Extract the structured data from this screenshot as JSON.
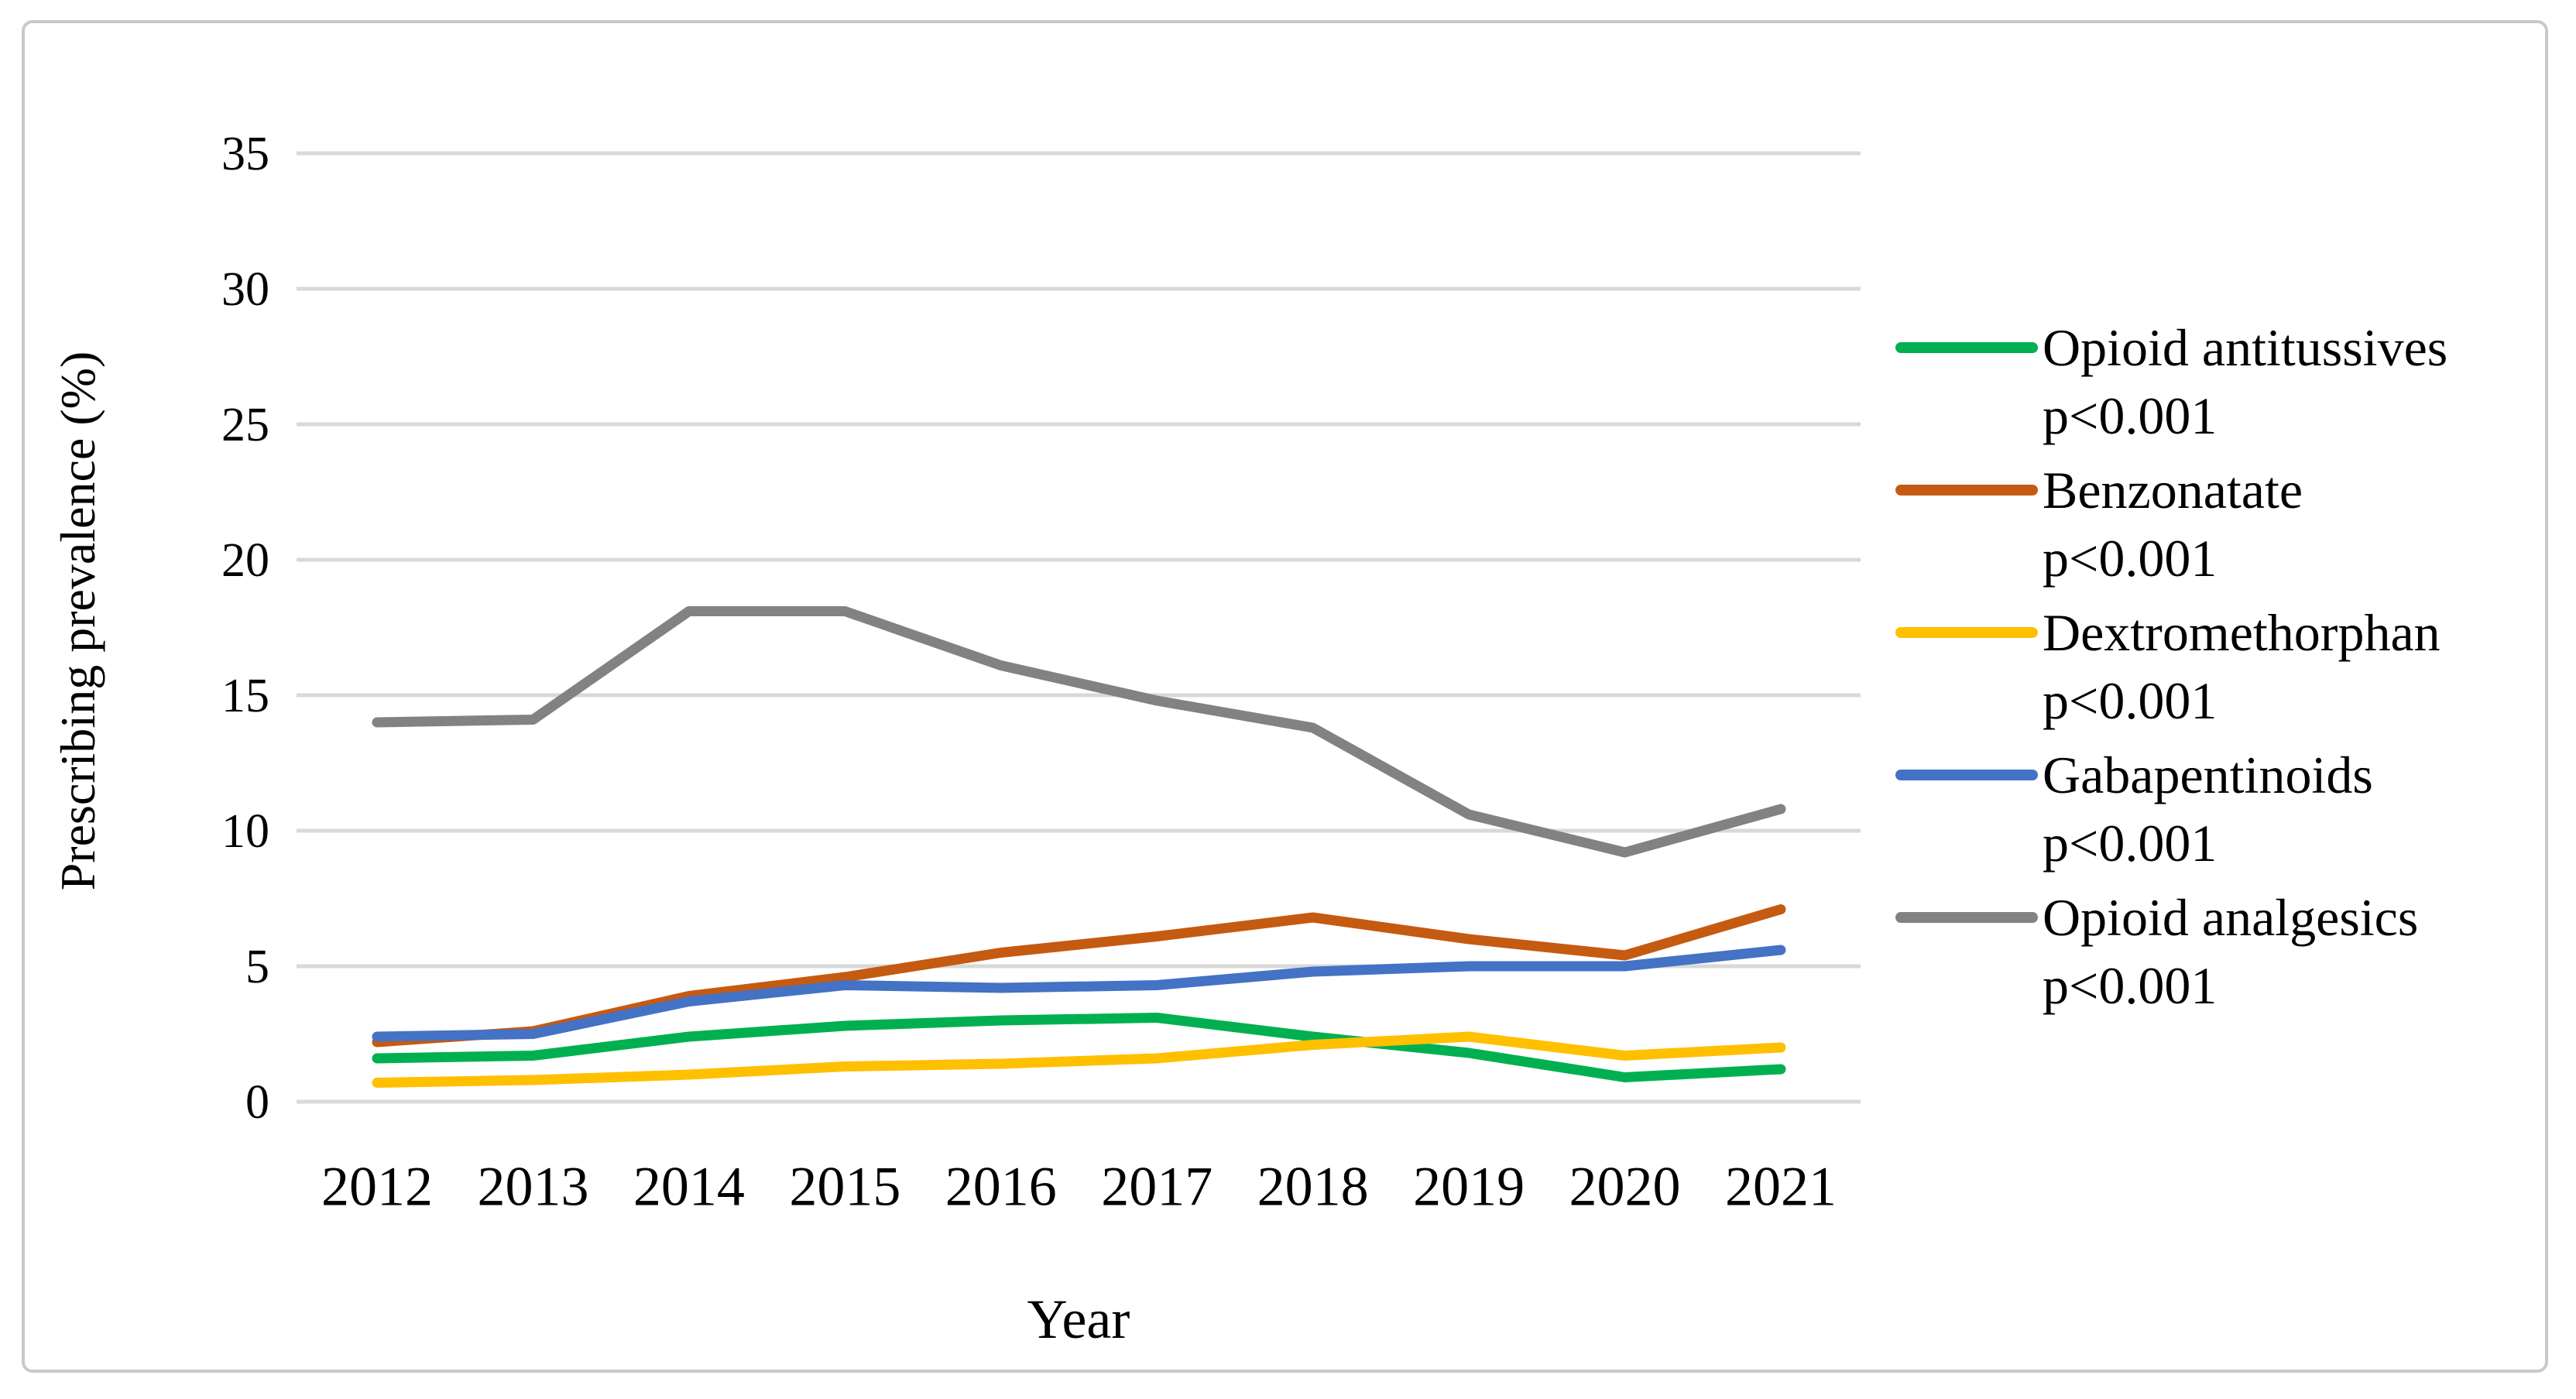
{
  "figure": {
    "border_color": "#c9c9c9",
    "background": "#ffffff"
  },
  "chart_data": {
    "type": "line",
    "title": "",
    "xlabel": "Year",
    "ylabel": "Prescribing prevalence (%)",
    "x": [
      2012,
      2013,
      2014,
      2015,
      2016,
      2017,
      2018,
      2019,
      2020,
      2021
    ],
    "ylim": [
      0,
      35
    ],
    "ytick_step": 5,
    "yticks": [
      0,
      5,
      10,
      15,
      20,
      25,
      30,
      35
    ],
    "grid": "horizontal",
    "gridline_color": "#d9d9d9",
    "legend_position": "right",
    "series": [
      {
        "name": "Opioid antitussives",
        "annotation": "p<0.001",
        "color": "#00B050",
        "values": [
          1.6,
          1.7,
          2.4,
          2.8,
          3.0,
          3.1,
          2.4,
          1.8,
          0.9,
          1.2
        ]
      },
      {
        "name": "Benzonatate",
        "annotation": "p<0.001",
        "color": "#C55A11",
        "values": [
          2.2,
          2.6,
          3.9,
          4.6,
          5.5,
          6.1,
          6.8,
          6.0,
          5.4,
          7.1
        ]
      },
      {
        "name": "Dextromethorphan",
        "annotation": "p<0.001",
        "color": "#FFC000",
        "values": [
          0.7,
          0.8,
          1.0,
          1.3,
          1.4,
          1.6,
          2.1,
          2.4,
          1.7,
          2.0
        ]
      },
      {
        "name": "Gabapentinoids",
        "annotation": "p<0.001",
        "color": "#4472C4",
        "values": [
          2.4,
          2.5,
          3.7,
          4.3,
          4.2,
          4.3,
          4.8,
          5.0,
          5.0,
          5.6
        ]
      },
      {
        "name": "Opioid analgesics",
        "annotation": "p<0.001",
        "color": "#828282",
        "values": [
          14.0,
          14.1,
          18.1,
          18.1,
          16.1,
          14.8,
          13.8,
          10.6,
          9.2,
          10.8
        ]
      }
    ]
  }
}
